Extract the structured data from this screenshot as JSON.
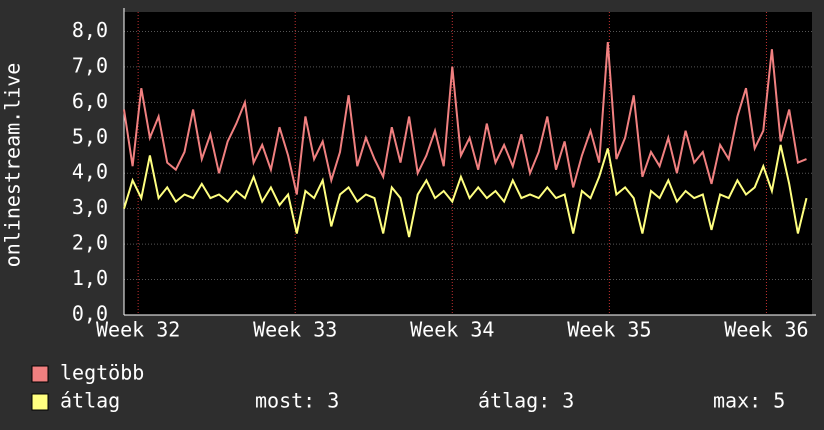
{
  "chart_data": {
    "type": "line",
    "y_label": "onlinestream.live",
    "x": [
      31.91,
      31.965,
      32.02,
      32.075,
      32.13,
      32.185,
      32.24,
      32.295,
      32.35,
      32.405,
      32.46,
      32.515,
      32.57,
      32.625,
      32.68,
      32.735,
      32.79,
      32.845,
      32.9,
      32.955,
      33.01,
      33.065,
      33.12,
      33.175,
      33.23,
      33.285,
      33.34,
      33.395,
      33.45,
      33.505,
      33.56,
      33.615,
      33.67,
      33.725,
      33.78,
      33.835,
      33.89,
      33.945,
      34.0,
      34.055,
      34.11,
      34.165,
      34.22,
      34.275,
      34.33,
      34.385,
      34.44,
      34.495,
      34.55,
      34.605,
      34.66,
      34.715,
      34.77,
      34.825,
      34.88,
      34.935,
      34.99,
      35.045,
      35.1,
      35.155,
      35.21,
      35.265,
      35.32,
      35.375,
      35.43,
      35.485,
      35.54,
      35.595,
      35.65,
      35.705,
      35.76,
      35.815,
      35.87,
      35.925,
      35.98,
      36.035,
      36.09,
      36.145,
      36.2,
      36.255
    ],
    "series": [
      {
        "name": "legtöbb",
        "color": "#f08080",
        "values": [
          5.8,
          4.2,
          6.4,
          5.0,
          5.6,
          4.3,
          4.1,
          4.6,
          5.8,
          4.4,
          5.1,
          4.0,
          4.9,
          5.4,
          6.0,
          4.3,
          4.8,
          4.1,
          5.3,
          4.5,
          3.4,
          5.6,
          4.4,
          4.9,
          3.8,
          4.6,
          6.2,
          4.2,
          5.0,
          4.4,
          3.9,
          5.3,
          4.3,
          5.6,
          4.0,
          4.5,
          5.2,
          4.2,
          7.0,
          4.5,
          5.0,
          4.1,
          5.4,
          4.3,
          4.8,
          4.2,
          5.1,
          4.0,
          4.6,
          5.6,
          4.1,
          4.9,
          3.6,
          4.5,
          5.2,
          4.3,
          7.7,
          4.4,
          5.0,
          6.2,
          3.9,
          4.6,
          4.2,
          5.0,
          4.0,
          5.2,
          4.3,
          4.6,
          3.7,
          4.8,
          4.4,
          5.6,
          6.4,
          4.7,
          5.2,
          7.5,
          4.9,
          5.8,
          4.3,
          4.4
        ]
      },
      {
        "name": "átlag",
        "color": "#ffff80",
        "values": [
          3.0,
          3.8,
          3.3,
          4.5,
          3.3,
          3.6,
          3.2,
          3.4,
          3.3,
          3.7,
          3.3,
          3.4,
          3.2,
          3.5,
          3.3,
          3.9,
          3.2,
          3.6,
          3.1,
          3.4,
          2.3,
          3.5,
          3.3,
          3.8,
          2.5,
          3.4,
          3.6,
          3.2,
          3.4,
          3.3,
          2.3,
          3.6,
          3.3,
          2.2,
          3.4,
          3.8,
          3.3,
          3.5,
          3.2,
          3.9,
          3.3,
          3.6,
          3.3,
          3.5,
          3.2,
          3.8,
          3.3,
          3.4,
          3.3,
          3.6,
          3.3,
          3.4,
          2.3,
          3.5,
          3.3,
          3.9,
          4.7,
          3.4,
          3.6,
          3.3,
          2.3,
          3.5,
          3.3,
          3.8,
          3.2,
          3.5,
          3.3,
          3.4,
          2.4,
          3.4,
          3.3,
          3.8,
          3.4,
          3.6,
          4.2,
          3.5,
          4.8,
          3.7,
          2.3,
          3.3
        ]
      }
    ],
    "stats": [
      "most: 3",
      "átlag: 3",
      "max: 5"
    ],
    "xlim": [
      31.91,
      36.29
    ],
    "xticks": [
      {
        "value": 32,
        "label": "Week 32"
      },
      {
        "value": 33,
        "label": "Week 33"
      },
      {
        "value": 34,
        "label": "Week 34"
      },
      {
        "value": 35,
        "label": "Week 35"
      },
      {
        "value": 36,
        "label": "Week 36"
      }
    ],
    "ylim": [
      0,
      8.55
    ],
    "yticks": [
      {
        "value": 0,
        "label": "0,0"
      },
      {
        "value": 1,
        "label": "1,0"
      },
      {
        "value": 2,
        "label": "2,0"
      },
      {
        "value": 3,
        "label": "3,0"
      },
      {
        "value": 4,
        "label": "4,0"
      },
      {
        "value": 5,
        "label": "5,0"
      },
      {
        "value": 6,
        "label": "6,0"
      },
      {
        "value": 7,
        "label": "7,0"
      },
      {
        "value": 8,
        "label": "8,0"
      }
    ],
    "grid": true
  }
}
